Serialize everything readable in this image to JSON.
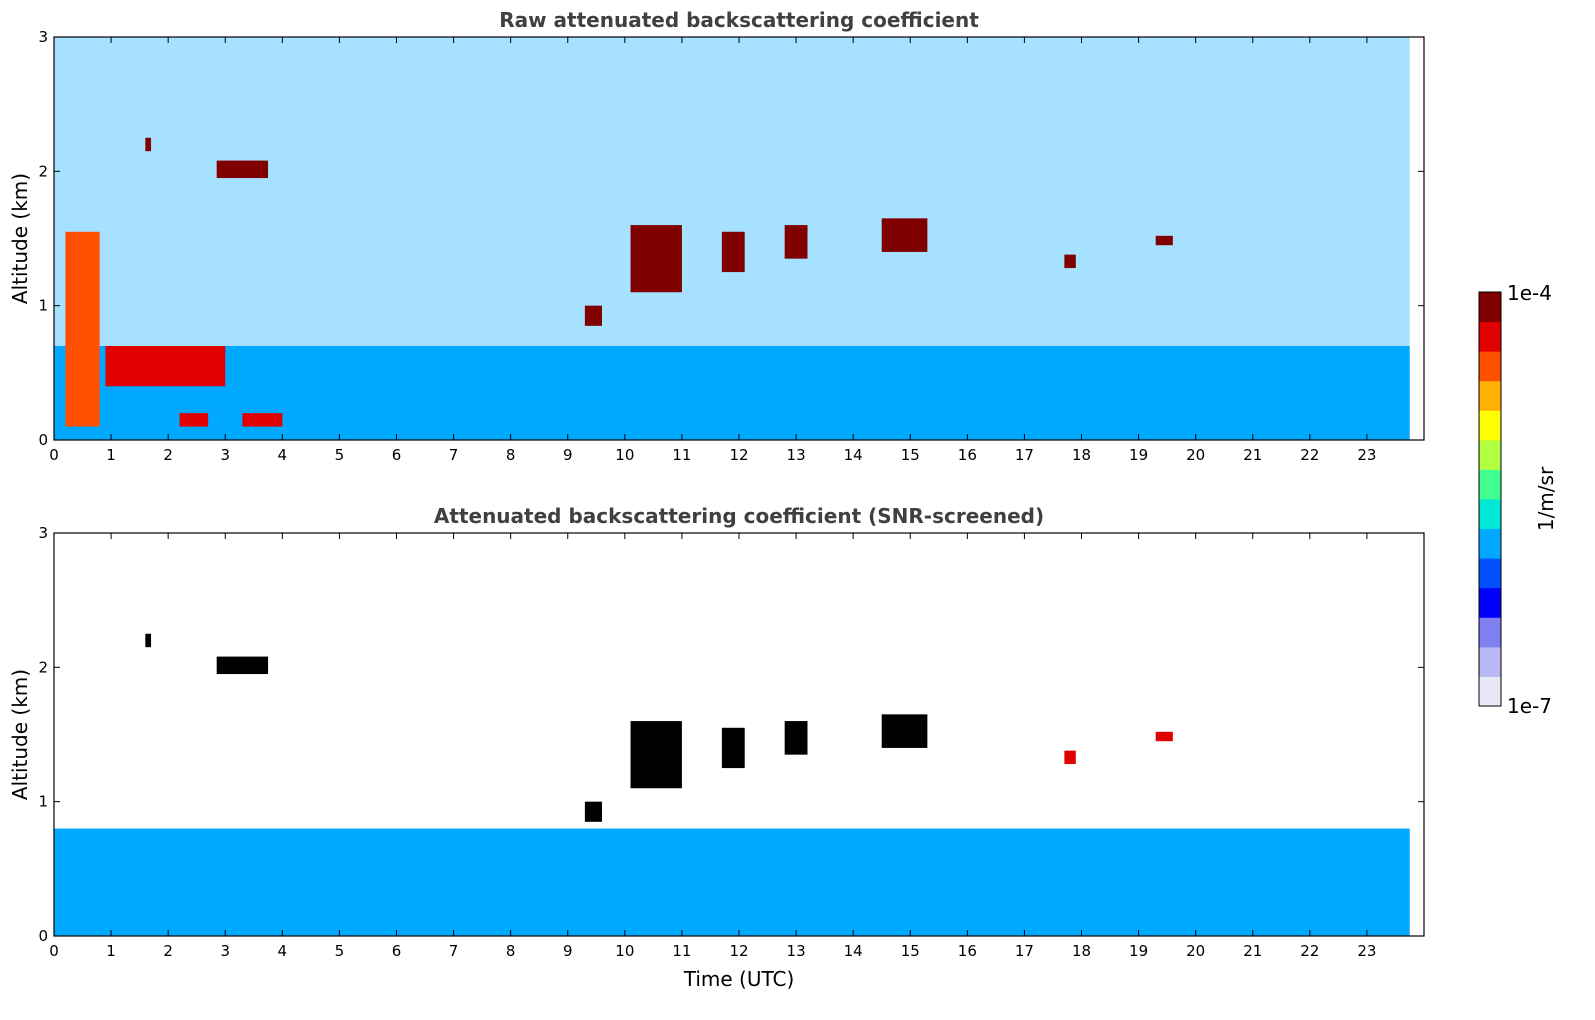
{
  "colors": {
    "scale": [
      "#e8e8f8",
      "#b8b8f4",
      "#8080f0",
      "#0000ff",
      "#0050ff",
      "#00a8ff",
      "#00e8d8",
      "#40ff90",
      "#b0ff40",
      "#ffff00",
      "#ffb000",
      "#ff5000",
      "#e00000",
      "#800000"
    ],
    "cloud_core": "#000000",
    "title_text": "#404040"
  },
  "chart_data": [
    {
      "type": "heatmap",
      "title": "Raw attenuated backscattering coefficient",
      "xlabel": "",
      "ylabel": "Altitude (km)",
      "xlim": [
        0,
        24
      ],
      "ylim": [
        0,
        3
      ],
      "xticks": [
        "0",
        "1",
        "2",
        "3",
        "4",
        "5",
        "6",
        "7",
        "8",
        "9",
        "10",
        "11",
        "12",
        "13",
        "14",
        "15",
        "16",
        "17",
        "18",
        "19",
        "20",
        "21",
        "22",
        "23"
      ],
      "yticks": [
        "0",
        "1",
        "2",
        "3"
      ],
      "features": [
        {
          "kind": "boundary_layer",
          "x": [
            0,
            24
          ],
          "y_top_km": 0.7,
          "level": 0.35
        },
        {
          "kind": "noise",
          "x": [
            0,
            24
          ],
          "y": [
            0.7,
            3.0
          ],
          "level": 0.4
        },
        {
          "kind": "cloud",
          "x": [
            1.6,
            1.7
          ],
          "y": [
            2.15,
            2.25
          ],
          "level": 1.0
        },
        {
          "kind": "cloud",
          "x": [
            2.85,
            3.75
          ],
          "y": [
            1.95,
            2.08
          ],
          "level": 1.0
        },
        {
          "kind": "cloud",
          "x": [
            0.2,
            0.8
          ],
          "y": [
            0.1,
            1.55
          ],
          "level": 0.85
        },
        {
          "kind": "cloud",
          "x": [
            0.9,
            3.0
          ],
          "y": [
            0.4,
            0.7
          ],
          "level": 0.95
        },
        {
          "kind": "cloud",
          "x": [
            2.2,
            2.7
          ],
          "y": [
            0.1,
            0.2
          ],
          "level": 0.95
        },
        {
          "kind": "cloud",
          "x": [
            3.3,
            4.0
          ],
          "y": [
            0.1,
            0.2
          ],
          "level": 0.95
        },
        {
          "kind": "cloud",
          "x": [
            9.3,
            9.6
          ],
          "y": [
            0.85,
            1.0
          ],
          "level": 1.0
        },
        {
          "kind": "cloud",
          "x": [
            10.1,
            11.0
          ],
          "y": [
            1.1,
            1.6
          ],
          "level": 1.0
        },
        {
          "kind": "cloud",
          "x": [
            11.7,
            12.1
          ],
          "y": [
            1.25,
            1.55
          ],
          "level": 1.0
        },
        {
          "kind": "cloud",
          "x": [
            12.8,
            13.2
          ],
          "y": [
            1.35,
            1.6
          ],
          "level": 1.0
        },
        {
          "kind": "cloud",
          "x": [
            14.5,
            15.3
          ],
          "y": [
            1.4,
            1.65
          ],
          "level": 1.0
        },
        {
          "kind": "cloud",
          "x": [
            17.7,
            17.9
          ],
          "y": [
            1.28,
            1.38
          ],
          "level": 1.0
        },
        {
          "kind": "cloud",
          "x": [
            19.3,
            19.6
          ],
          "y": [
            1.45,
            1.52
          ],
          "level": 1.0
        }
      ]
    },
    {
      "type": "heatmap",
      "title": "Attenuated backscattering coefficient (SNR-screened)",
      "xlabel": "Time (UTC)",
      "ylabel": "Altitude (km)",
      "xlim": [
        0,
        24
      ],
      "ylim": [
        0,
        3
      ],
      "xticks": [
        "0",
        "1",
        "2",
        "3",
        "4",
        "5",
        "6",
        "7",
        "8",
        "9",
        "10",
        "11",
        "12",
        "13",
        "14",
        "15",
        "16",
        "17",
        "18",
        "19",
        "20",
        "21",
        "22",
        "23"
      ],
      "yticks": [
        "0",
        "1",
        "2",
        "3"
      ],
      "features": [
        {
          "kind": "boundary_layer",
          "x": [
            0,
            24
          ],
          "y_top_km": 0.8,
          "level": 0.35
        },
        {
          "kind": "cloud",
          "x": [
            1.6,
            1.7
          ],
          "y": [
            2.15,
            2.25
          ],
          "level": 1.0
        },
        {
          "kind": "cloud",
          "x": [
            2.85,
            3.75
          ],
          "y": [
            1.95,
            2.08
          ],
          "level": 1.0
        },
        {
          "kind": "cloud",
          "x": [
            9.3,
            9.6
          ],
          "y": [
            0.85,
            1.0
          ],
          "level": 1.0
        },
        {
          "kind": "cloud",
          "x": [
            10.1,
            11.0
          ],
          "y": [
            1.1,
            1.6
          ],
          "level": 1.0
        },
        {
          "kind": "cloud",
          "x": [
            11.7,
            12.1
          ],
          "y": [
            1.25,
            1.55
          ],
          "level": 1.0
        },
        {
          "kind": "cloud",
          "x": [
            12.8,
            13.2
          ],
          "y": [
            1.35,
            1.6
          ],
          "level": 1.0
        },
        {
          "kind": "cloud",
          "x": [
            14.5,
            15.3
          ],
          "y": [
            1.4,
            1.65
          ],
          "level": 1.0
        },
        {
          "kind": "cloud",
          "x": [
            17.7,
            17.9
          ],
          "y": [
            1.28,
            1.38
          ],
          "level": 0.9
        },
        {
          "kind": "cloud",
          "x": [
            19.3,
            19.6
          ],
          "y": [
            1.45,
            1.52
          ],
          "level": 0.9
        }
      ]
    }
  ],
  "colorbar": {
    "label": "1/m/sr",
    "max_label": "1e-4",
    "min_label": "1e-7",
    "range": [
      1e-07,
      0.0001
    ],
    "scale": "log"
  }
}
